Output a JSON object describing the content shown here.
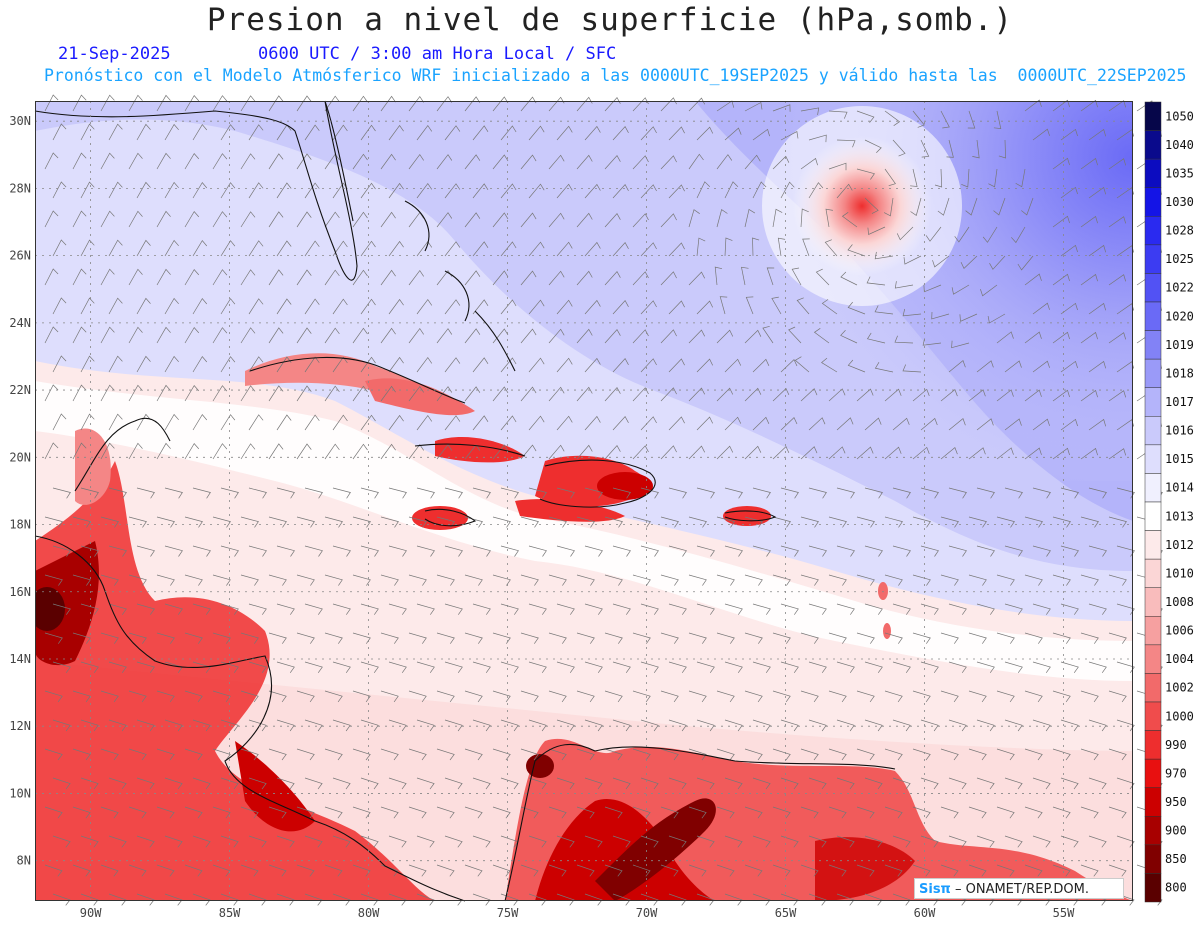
{
  "header": {
    "title": "Presion a nivel de superficie (hPa,somb.)",
    "date": "21-Sep-2025",
    "time_line": "0600 UTC / 3:00 am Hora Local / SFC",
    "subtitle": "Pronóstico con el Modelo Atmósferico WRF inicializado a las 0000UTC_19SEP2025 y válido hasta las  0000UTC_22SEP2025"
  },
  "map": {
    "lon_labels": [
      "90W",
      "85W",
      "80W",
      "75W",
      "70W",
      "65W",
      "60W",
      "55W"
    ],
    "lat_labels": [
      "30N",
      "28N",
      "26N",
      "24N",
      "22N",
      "20N",
      "18N",
      "16N",
      "14N",
      "12N",
      "10N",
      "8N"
    ],
    "lon_values": [
      -90,
      -85,
      -80,
      -75,
      -70,
      -65,
      -60,
      -55
    ],
    "lat_values": [
      30,
      28,
      26,
      24,
      22,
      20,
      18,
      16,
      14,
      12,
      10,
      8
    ],
    "lon_range": [
      -92,
      -52.5
    ],
    "lat_range": [
      6.8,
      30.6
    ]
  },
  "colorbar": {
    "levels": [
      "1050",
      "1040",
      "1035",
      "1030",
      "1028",
      "1025",
      "1022",
      "1020",
      "1019",
      "1018",
      "1017",
      "1016",
      "1015",
      "1014",
      "1013",
      "1012",
      "1010",
      "1008",
      "1006",
      "1004",
      "1002",
      "1000",
      "990",
      "970",
      "950",
      "900",
      "850",
      "800"
    ],
    "colors": [
      "#06064a",
      "#0a0a8c",
      "#0c0cc0",
      "#1414e6",
      "#2a2af0",
      "#3c3cf2",
      "#5252f4",
      "#6a6af6",
      "#8282f6",
      "#9a9af8",
      "#b4b4fa",
      "#cacafb",
      "#dedefd",
      "#f0f0fe",
      "#ffffff",
      "#fdeaea",
      "#fbd6d6",
      "#f9bcbc",
      "#f6a0a0",
      "#f48686",
      "#f26a6a",
      "#f04c4c",
      "#ee2e2e",
      "#e81010",
      "#cc0000",
      "#a80000",
      "#800000",
      "#5a0000"
    ]
  },
  "logo": {
    "brand": "Sisπ",
    "text": "– ONAMET/REP.DOM."
  }
}
